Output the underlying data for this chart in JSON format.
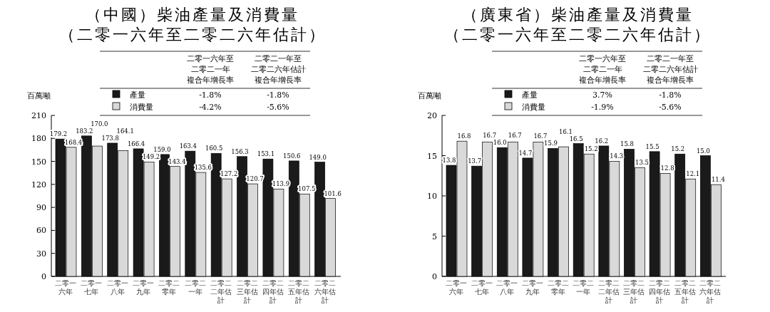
{
  "chart_data": [
    {
      "type": "bar",
      "title": "（中國）柴油產量及消費量",
      "subtitle": "（二零一六年至二零二六年估計）",
      "ylabel": "百萬噸",
      "categories": [
        "二零一六年",
        "二零一七年",
        "二零一八年",
        "二零一九年",
        "二零二零年",
        "二零二一年",
        "二零二二年估計",
        "二零二三年估計",
        "二零二四年估計",
        "二零二五年估計",
        "二零二六年估計"
      ],
      "ylim": [
        0,
        210
      ],
      "yticks": [
        0,
        30,
        60,
        90,
        120,
        150,
        180,
        210
      ],
      "legend": "top",
      "annotations": [
        "二零一六年至",
        "二零二一年",
        "複合年增長率",
        "二零二一年至",
        "二零二六年估計",
        "複合年增長率",
        "-1.8%",
        "-1.8%",
        "-4.2%",
        "-5.6%"
      ],
      "series": [
        {
          "name": "產量",
          "color": "#1a1a1a",
          "values": [
            179.2,
            183.2,
            173.8,
            166.4,
            159.0,
            163.4,
            160.5,
            156.3,
            153.1,
            150.6,
            149.0
          ],
          "value_labels": [
            "179.2",
            "183.2",
            "173.8",
            "166.4",
            "159.0",
            "163.4",
            "160.5",
            "156.3",
            "153.1",
            "150.6",
            "149.0"
          ]
        },
        {
          "name": "消費量",
          "color": "#d9d9d9",
          "values": [
            168.4,
            170.0,
            164.1,
            149.2,
            143.4,
            135.6,
            127.2,
            120.7,
            113.9,
            107.5,
            101.6
          ],
          "value_labels": [
            "168.4",
            "170.0",
            "164.1",
            "149.2",
            "143.4",
            "135.6",
            "127.2",
            "120.7",
            "113.9",
            "107.5",
            "101.6"
          ]
        }
      ]
    },
    {
      "type": "bar",
      "title": "（廣東省）柴油產量及消費量",
      "subtitle": "（二零一六年至二零二六年估計）",
      "ylabel": "百萬噸",
      "categories": [
        "二零一六年",
        "二零一七年",
        "二零一八年",
        "二零一九年",
        "二零二零年",
        "二零二一年",
        "二零二二年估計",
        "二零二三年估計",
        "二零二四年估計",
        "二零二五年估計",
        "二零二六年估計"
      ],
      "ylim": [
        0,
        20
      ],
      "yticks": [
        0,
        5,
        10,
        15,
        20
      ],
      "legend": "top",
      "annotations": [
        "二零一六年至",
        "二零二一年",
        "複合年增長率",
        "二零二一年至",
        "二零二六年估計",
        "複合年增長率",
        "3.7%",
        "-1.8%",
        "-1.9%",
        "-5.6%"
      ],
      "series": [
        {
          "name": "產量",
          "color": "#1a1a1a",
          "values": [
            13.8,
            13.7,
            16.0,
            14.7,
            15.9,
            16.5,
            16.2,
            15.8,
            15.5,
            15.2,
            15.0
          ],
          "value_labels": [
            "13.8",
            "13.7",
            "16.0",
            "14.7",
            "15.9",
            "16.5",
            "16.2",
            "15.8",
            "15.5",
            "15.2",
            "15.0"
          ]
        },
        {
          "name": "消費量",
          "color": "#d9d9d9",
          "values": [
            16.8,
            16.7,
            16.7,
            16.7,
            16.1,
            15.2,
            14.3,
            13.5,
            12.8,
            12.1,
            11.4
          ],
          "value_labels": [
            "16.8",
            "16.7",
            "16.7",
            "16.7",
            "16.1",
            "15.2",
            "14.3",
            "13.5",
            "12.8",
            "12.1",
            "11.4"
          ]
        }
      ]
    }
  ]
}
